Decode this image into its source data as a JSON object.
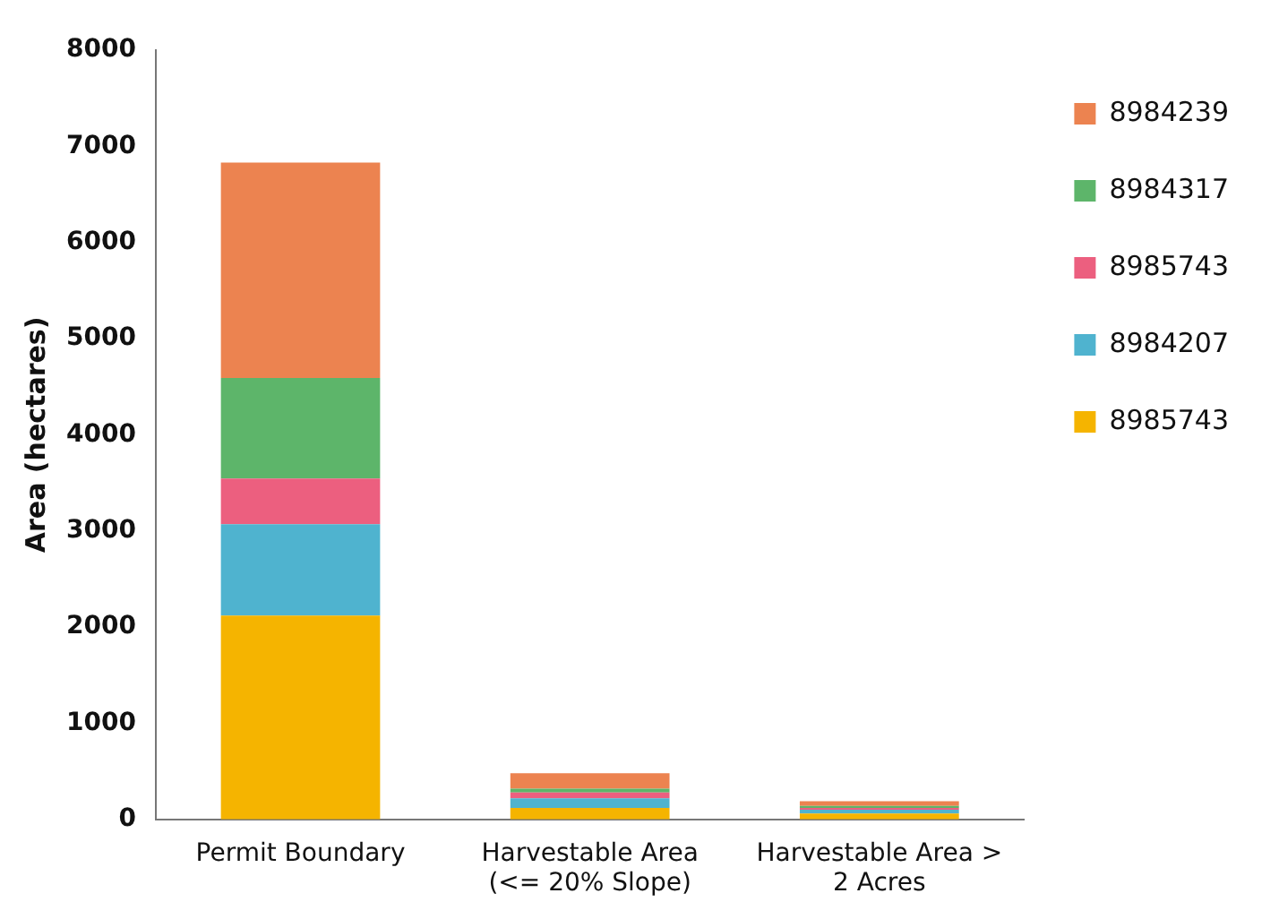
{
  "chart_data": {
    "type": "bar",
    "stacked": true,
    "ylabel": "Area (hectares)",
    "categories": [
      "Permit Boundary",
      "Harvestable Area (<= 20% Slope)",
      "Harvestable Area > 2 Acres"
    ],
    "series": [
      {
        "name": "8985743",
        "color": "#f5b400",
        "values": [
          2120,
          120,
          60
        ]
      },
      {
        "name": "8984207",
        "color": "#4fb3cf",
        "values": [
          950,
          100,
          40
        ]
      },
      {
        "name": "8985743",
        "color": "#ec5f7f",
        "values": [
          475,
          60,
          20
        ]
      },
      {
        "name": "8984317",
        "color": "#5db56a",
        "values": [
          1045,
          40,
          20
        ]
      },
      {
        "name": "8984239",
        "color": "#ec8350",
        "values": [
          2240,
          160,
          50
        ]
      }
    ],
    "ylim": [
      0,
      8000
    ],
    "yticks": [
      0,
      1000,
      2000,
      3000,
      4000,
      5000,
      6000,
      7000,
      8000
    ],
    "grid": false,
    "legend": "top right"
  }
}
